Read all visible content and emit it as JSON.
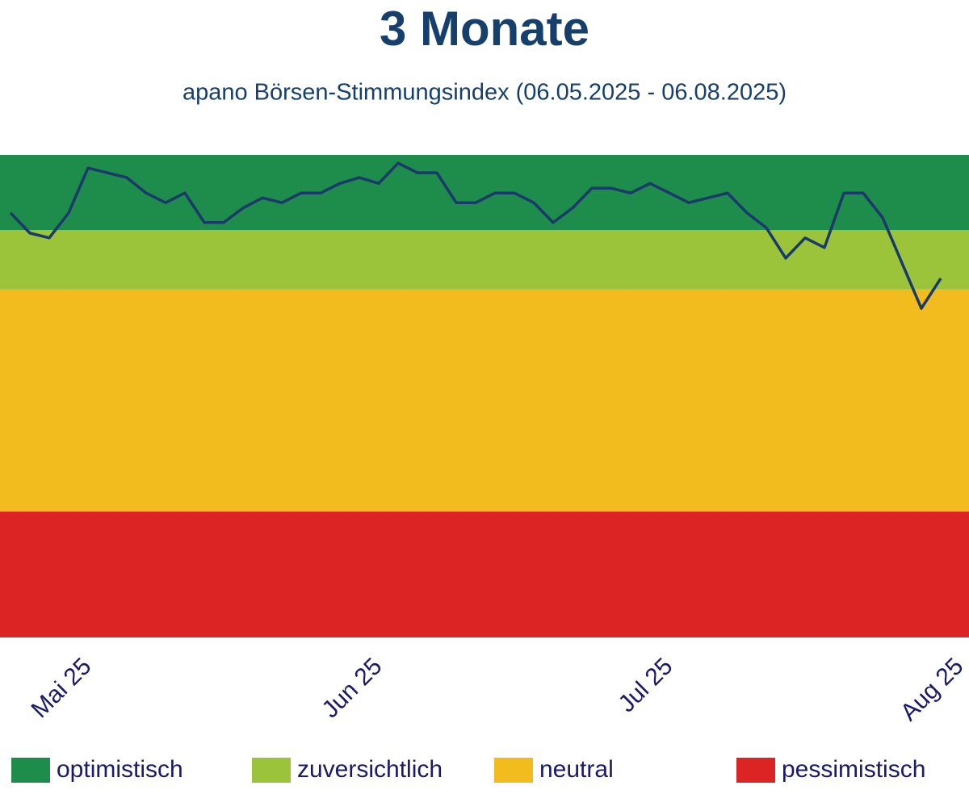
{
  "chart_data": {
    "type": "line",
    "title": "3 Monate",
    "subtitle": "apano Börsen-Stimmungsindex (06.05.2025 - 06.08.2025)",
    "bands": [
      {
        "name": "optimistisch",
        "color": "#1e8c4a",
        "from": 84.4,
        "to": 100
      },
      {
        "name": "zuversichtlich",
        "color": "#9bc43a",
        "from": 72.1,
        "to": 84.4
      },
      {
        "name": "neutral",
        "color": "#f2bc1f",
        "from": 26.1,
        "to": 72.1
      },
      {
        "name": "pessimistisch",
        "color": "#dd2424",
        "from": 0,
        "to": 26.1
      }
    ],
    "series": [
      {
        "color": "#1a3a6b",
        "values": [
          88.0,
          83.8,
          82.8,
          88.0,
          97.3,
          96.3,
          95.3,
          92.1,
          90.1,
          92.1,
          86.0,
          86.0,
          89.0,
          91.1,
          90.1,
          92.1,
          92.1,
          94.1,
          95.3,
          94.1,
          98.3,
          96.3,
          96.3,
          90.1,
          90.1,
          92.1,
          92.1,
          90.1,
          86.0,
          89.0,
          93.1,
          93.1,
          92.1,
          94.1,
          92.1,
          90.1,
          91.1,
          92.1,
          88.0,
          84.9,
          78.6,
          82.8,
          80.8,
          92.1,
          92.1,
          87.0,
          77.6,
          68.2,
          74.4
        ]
      }
    ],
    "xlim": [
      0,
      48
    ],
    "xticks": [
      {
        "value": 4,
        "label": "Mai 25"
      },
      {
        "value": 19,
        "label": "Jun 25"
      },
      {
        "value": 34,
        "label": "Jul 25"
      },
      {
        "value": 49,
        "label": "Aug 25"
      }
    ],
    "ylim": [
      0,
      100
    ]
  }
}
